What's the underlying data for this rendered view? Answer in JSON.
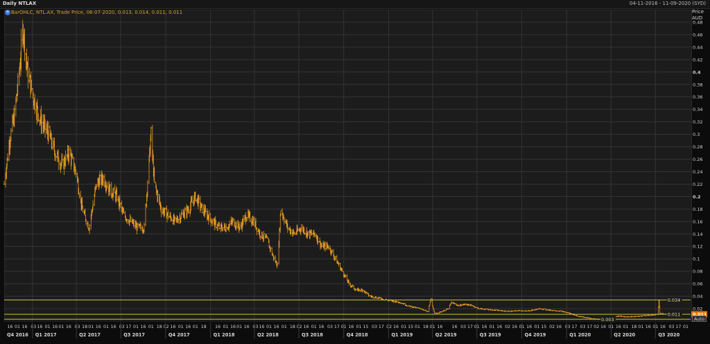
{
  "window": {
    "title": "Daily NTLAX",
    "date_range": "04-11-2016 - 11-09-2020 (SYD)"
  },
  "legend": {
    "icon": "chart-settings-icon",
    "text": "BarOHLC, NTL.AX, Trade Price, 06-07-2020, 0.013, 0.014, 0.011, 0.011"
  },
  "axis": {
    "title_line1": "Price",
    "title_line2": "AUD",
    "auto_button": "Auto"
  },
  "colors": {
    "bars": "#e49b23",
    "hlines": "#c9c23a",
    "last_price_tag": "#e07a10",
    "background": "#1c1c1c",
    "grid": "#343434"
  },
  "chart_data": {
    "type": "bar",
    "series_type": "OHLC",
    "instrument": "NTL.AX",
    "currency": "AUD",
    "ylim": [
      0,
      0.5
    ],
    "yticks": [
      "0.48",
      "0.46",
      "0.44",
      "0.42",
      "0.4",
      "0.38",
      "0.36",
      "0.34",
      "0.32",
      "0.3",
      "0.28",
      "0.26",
      "0.24",
      "0.22",
      "0.2",
      "0.18",
      "0.16",
      "0.14",
      "0.12",
      "0.1",
      "0.08",
      "0.06",
      "0.04",
      "0.02"
    ],
    "yticks_bold": [
      "0.4",
      "0.2"
    ],
    "xlim": [
      "2016-11-04",
      "2020-09-11"
    ],
    "date_ticks": [
      [
        "2016-11-16",
        "16"
      ],
      [
        "2016-12-01",
        "01"
      ],
      [
        "2016-12-16",
        "16"
      ],
      [
        "2017-01-03",
        "03"
      ],
      [
        "2017-01-16",
        "16"
      ],
      [
        "2017-02-01",
        "01"
      ],
      [
        "2017-02-16",
        "16"
      ],
      [
        "2017-03-01",
        "01"
      ],
      [
        "2017-03-16",
        "16"
      ],
      [
        "2017-04-03",
        "03"
      ],
      [
        "2017-04-18",
        "18"
      ],
      [
        "2017-05-01",
        "01"
      ],
      [
        "2017-05-16",
        "16"
      ],
      [
        "2017-06-01",
        "01"
      ],
      [
        "2017-06-16",
        "16"
      ],
      [
        "2017-07-03",
        "03"
      ],
      [
        "2017-07-17",
        "17"
      ],
      [
        "2017-08-01",
        "01"
      ],
      [
        "2017-08-16",
        "16"
      ],
      [
        "2017-09-01",
        "01"
      ],
      [
        "2017-09-18",
        "18"
      ],
      [
        "2017-10-02",
        "02"
      ],
      [
        "2017-10-16",
        "16"
      ],
      [
        "2017-11-01",
        "01"
      ],
      [
        "2017-11-16",
        "16"
      ],
      [
        "2017-12-01",
        "01"
      ],
      [
        "2017-12-18",
        "18"
      ],
      [
        "2018-01-16",
        "16"
      ],
      [
        "2018-02-01",
        "01"
      ],
      [
        "2018-02-16",
        "16"
      ],
      [
        "2018-03-01",
        "01"
      ],
      [
        "2018-03-16",
        "16"
      ],
      [
        "2018-04-03",
        "03"
      ],
      [
        "2018-04-16",
        "16"
      ],
      [
        "2018-05-01",
        "01"
      ],
      [
        "2018-05-16",
        "16"
      ],
      [
        "2018-06-01",
        "01"
      ],
      [
        "2018-06-18",
        "18"
      ],
      [
        "2018-07-02",
        "02"
      ],
      [
        "2018-07-16",
        "16"
      ],
      [
        "2018-08-01",
        "01"
      ],
      [
        "2018-08-16",
        "16"
      ],
      [
        "2018-09-03",
        "03"
      ],
      [
        "2018-09-17",
        "17"
      ],
      [
        "2018-10-01",
        "01"
      ],
      [
        "2018-10-16",
        "16"
      ],
      [
        "2018-11-01",
        "01"
      ],
      [
        "2018-11-15",
        "15"
      ],
      [
        "2018-12-03",
        "03"
      ],
      [
        "2018-12-17",
        "17"
      ],
      [
        "2019-01-02",
        "02"
      ],
      [
        "2019-01-16",
        "16"
      ],
      [
        "2019-02-01",
        "01"
      ],
      [
        "2019-02-15",
        "15"
      ],
      [
        "2019-03-01",
        "01"
      ],
      [
        "2019-03-18",
        "18"
      ],
      [
        "2019-04-01",
        "01"
      ],
      [
        "2019-04-16",
        "16"
      ],
      [
        "2019-05-16",
        "16"
      ],
      [
        "2019-06-03",
        "03"
      ],
      [
        "2019-06-17",
        "17"
      ],
      [
        "2019-07-01",
        "01"
      ],
      [
        "2019-07-16",
        "16"
      ],
      [
        "2019-08-01",
        "01"
      ],
      [
        "2019-08-16",
        "16"
      ],
      [
        "2019-09-02",
        "02"
      ],
      [
        "2019-09-16",
        "16"
      ],
      [
        "2019-10-01",
        "01"
      ],
      [
        "2019-10-16",
        "16"
      ],
      [
        "2019-11-01",
        "01"
      ],
      [
        "2019-11-15",
        "15"
      ],
      [
        "2019-12-02",
        "02"
      ],
      [
        "2019-12-16",
        "16"
      ],
      [
        "2020-01-03",
        "03"
      ],
      [
        "2020-01-17",
        "17"
      ],
      [
        "2020-02-03",
        "03"
      ],
      [
        "2020-02-17",
        "17"
      ],
      [
        "2020-03-02",
        "02"
      ],
      [
        "2020-03-16",
        "16"
      ],
      [
        "2020-04-01",
        "01"
      ],
      [
        "2020-04-16",
        "16"
      ],
      [
        "2020-05-01",
        "01"
      ],
      [
        "2020-05-18",
        "18"
      ],
      [
        "2020-06-01",
        "01"
      ],
      [
        "2020-06-16",
        "16"
      ],
      [
        "2020-07-01",
        "01"
      ],
      [
        "2020-07-16",
        "16"
      ],
      [
        "2020-08-03",
        "03"
      ],
      [
        "2020-08-17",
        "17"
      ],
      [
        "2020-09-01",
        "01"
      ]
    ],
    "quarters": [
      [
        "2016-10-01",
        "Q4 2016"
      ],
      [
        "2017-01-01",
        "Q1 2017"
      ],
      [
        "2017-04-01",
        "Q2 2017"
      ],
      [
        "2017-07-01",
        "Q3 2017"
      ],
      [
        "2017-10-01",
        "Q4 2017"
      ],
      [
        "2018-01-01",
        "Q1 2018"
      ],
      [
        "2018-04-01",
        "Q2 2018"
      ],
      [
        "2018-07-01",
        "Q3 2018"
      ],
      [
        "2018-10-01",
        "Q4 2018"
      ],
      [
        "2019-01-01",
        "Q1 2019"
      ],
      [
        "2019-04-01",
        "Q2 2019"
      ],
      [
        "2019-07-01",
        "Q3 2019"
      ],
      [
        "2019-10-01",
        "Q4 2019"
      ],
      [
        "2020-01-01",
        "Q1 2020"
      ],
      [
        "2020-04-01",
        "Q2 2020"
      ],
      [
        "2020-07-01",
        "Q3 2020"
      ]
    ],
    "price_anchors": [
      [
        "2016-11-04",
        0.22
      ],
      [
        "2016-11-15",
        0.29
      ],
      [
        "2016-11-25",
        0.33
      ],
      [
        "2016-12-05",
        0.4
      ],
      [
        "2016-12-13",
        0.47
      ],
      [
        "2016-12-22",
        0.4
      ],
      [
        "2017-01-06",
        0.35
      ],
      [
        "2017-01-19",
        0.32
      ],
      [
        "2017-02-03",
        0.3
      ],
      [
        "2017-02-17",
        0.27
      ],
      [
        "2017-03-03",
        0.25
      ],
      [
        "2017-03-17",
        0.27
      ],
      [
        "2017-03-31",
        0.24
      ],
      [
        "2017-04-13",
        0.18
      ],
      [
        "2017-04-27",
        0.15
      ],
      [
        "2017-05-12",
        0.22
      ],
      [
        "2017-05-26",
        0.23
      ],
      [
        "2017-06-09",
        0.21
      ],
      [
        "2017-06-23",
        0.2
      ],
      [
        "2017-07-07",
        0.17
      ],
      [
        "2017-07-21",
        0.16
      ],
      [
        "2017-08-04",
        0.15
      ],
      [
        "2017-08-18",
        0.15
      ],
      [
        "2017-09-01",
        0.3
      ],
      [
        "2017-09-08",
        0.22
      ],
      [
        "2017-09-22",
        0.18
      ],
      [
        "2017-10-06",
        0.17
      ],
      [
        "2017-10-20",
        0.16
      ],
      [
        "2017-11-03",
        0.17
      ],
      [
        "2017-11-17",
        0.18
      ],
      [
        "2017-12-01",
        0.2
      ],
      [
        "2017-12-15",
        0.18
      ],
      [
        "2018-01-05",
        0.16
      ],
      [
        "2018-01-19",
        0.15
      ],
      [
        "2018-02-02",
        0.15
      ],
      [
        "2018-02-16",
        0.16
      ],
      [
        "2018-03-02",
        0.15
      ],
      [
        "2018-03-16",
        0.17
      ],
      [
        "2018-03-30",
        0.16
      ],
      [
        "2018-04-13",
        0.14
      ],
      [
        "2018-04-27",
        0.13
      ],
      [
        "2018-05-11",
        0.1
      ],
      [
        "2018-05-18",
        0.09
      ],
      [
        "2018-05-25",
        0.18
      ],
      [
        "2018-06-08",
        0.15
      ],
      [
        "2018-06-22",
        0.14
      ],
      [
        "2018-07-06",
        0.15
      ],
      [
        "2018-07-20",
        0.14
      ],
      [
        "2018-08-03",
        0.14
      ],
      [
        "2018-08-17",
        0.12
      ],
      [
        "2018-08-31",
        0.12
      ],
      [
        "2018-09-14",
        0.1
      ],
      [
        "2018-09-28",
        0.08
      ],
      [
        "2018-10-12",
        0.06
      ],
      [
        "2018-10-26",
        0.05
      ],
      [
        "2018-11-09",
        0.05
      ],
      [
        "2018-11-23",
        0.04
      ],
      [
        "2018-12-07",
        0.038
      ],
      [
        "2018-12-21",
        0.035
      ],
      [
        "2019-01-11",
        0.032
      ],
      [
        "2019-01-25",
        0.03
      ],
      [
        "2019-02-08",
        0.025
      ],
      [
        "2019-02-22",
        0.022
      ],
      [
        "2019-03-08",
        0.02
      ],
      [
        "2019-03-22",
        0.015
      ],
      [
        "2019-03-29",
        0.035
      ],
      [
        "2019-04-05",
        0.012
      ],
      [
        "2019-04-19",
        0.015
      ],
      [
        "2019-05-03",
        0.02
      ],
      [
        "2019-05-10",
        0.03
      ],
      [
        "2019-05-24",
        0.025
      ],
      [
        "2019-06-07",
        0.027
      ],
      [
        "2019-06-21",
        0.025
      ],
      [
        "2019-07-05",
        0.02
      ],
      [
        "2019-07-19",
        0.019
      ],
      [
        "2019-08-02",
        0.018
      ],
      [
        "2019-08-16",
        0.017
      ],
      [
        "2019-08-30",
        0.016
      ],
      [
        "2019-09-13",
        0.016
      ],
      [
        "2019-09-27",
        0.017
      ],
      [
        "2019-10-11",
        0.016
      ],
      [
        "2019-10-25",
        0.018
      ],
      [
        "2019-11-08",
        0.02
      ],
      [
        "2019-11-22",
        0.018
      ],
      [
        "2019-12-06",
        0.017
      ],
      [
        "2019-12-20",
        0.016
      ],
      [
        "2020-01-10",
        0.012
      ],
      [
        "2020-01-24",
        0.008
      ],
      [
        "2020-02-07",
        0.006
      ],
      [
        "2020-02-21",
        0.004
      ],
      [
        "2020-03-06",
        0.003
      ],
      [
        "2020-03-20",
        0.004
      ],
      [
        "2020-04-03",
        0.006
      ],
      [
        "2020-04-17",
        0.008
      ],
      [
        "2020-05-01",
        0.007
      ],
      [
        "2020-05-15",
        0.007
      ],
      [
        "2020-05-29",
        0.008
      ],
      [
        "2020-06-12",
        0.009
      ],
      [
        "2020-06-26",
        0.01
      ],
      [
        "2020-07-06",
        0.011
      ],
      [
        "2020-07-08",
        0.034
      ],
      [
        "2020-07-10",
        0.012
      ],
      [
        "2020-07-24",
        0.011
      ],
      [
        "2020-08-07",
        0.011
      ]
    ],
    "horizontal_lines": [
      {
        "value": 0.034,
        "label": "0.034",
        "label_at": "2020-07-20"
      },
      {
        "value": 0.011,
        "label": "0.011",
        "label_at": "2020-07-20"
      },
      {
        "value": 0.003,
        "label": "0.003",
        "label_at": "2020-03-06"
      }
    ],
    "last_price": {
      "value": 0.011,
      "label": "0.011"
    }
  }
}
